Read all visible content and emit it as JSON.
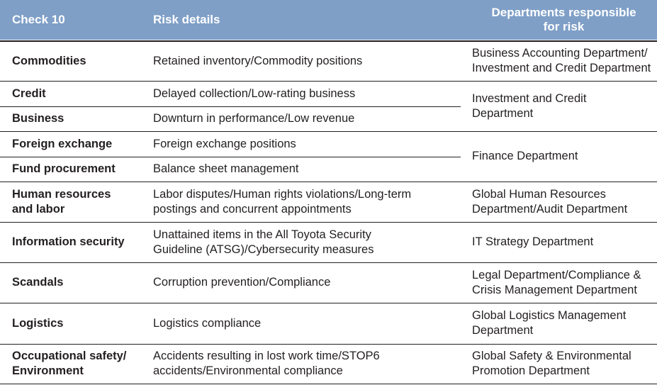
{
  "header": {
    "col1": "Check 10",
    "col2": "Risk details",
    "col3_line1": "Departments responsible",
    "col3_line2": "for risk"
  },
  "rows": [
    {
      "category": [
        "Commodities"
      ],
      "details": [
        "Retained inventory/Commodity positions"
      ]
    },
    {
      "category": [
        "Credit"
      ],
      "details": [
        "Delayed collection/Low-rating business"
      ]
    },
    {
      "category": [
        "Business"
      ],
      "details": [
        "Downturn in performance/Low revenue"
      ]
    },
    {
      "category": [
        "Foreign exchange"
      ],
      "details": [
        "Foreign exchange positions"
      ]
    },
    {
      "category": [
        "Fund procurement"
      ],
      "details": [
        "Balance sheet management"
      ]
    },
    {
      "category": [
        "Human resources",
        "and labor"
      ],
      "details": [
        "Labor disputes/Human rights violations/Long-term",
        "postings and concurrent appointments"
      ]
    },
    {
      "category": [
        "Information security"
      ],
      "details": [
        "Unattained items in the All Toyota Security",
        "Guideline (ATSG)/Cybersecurity measures"
      ]
    },
    {
      "category": [
        "Scandals"
      ],
      "details": [
        "Corruption prevention/Compliance"
      ]
    },
    {
      "category": [
        "Logistics"
      ],
      "details": [
        "Logistics compliance"
      ]
    },
    {
      "category": [
        "Occupational safety/",
        "Environment"
      ],
      "details": [
        "Accidents resulting in lost work time/STOP6",
        "accidents/Environmental compliance"
      ]
    }
  ],
  "departments": [
    [
      "Business Accounting Department/",
      "Investment and Credit Department"
    ],
    [
      "Investment and Credit",
      "Department"
    ],
    [
      "Finance Department"
    ],
    [
      "Global Human Resources",
      "Department/Audit Department"
    ],
    [
      "IT Strategy Department"
    ],
    [
      "Legal Department/Compliance &",
      "Crisis Management Department"
    ],
    [
      "Global Logistics Management",
      "Department"
    ],
    [
      "Global Safety & Environmental",
      "Promotion Department"
    ]
  ]
}
